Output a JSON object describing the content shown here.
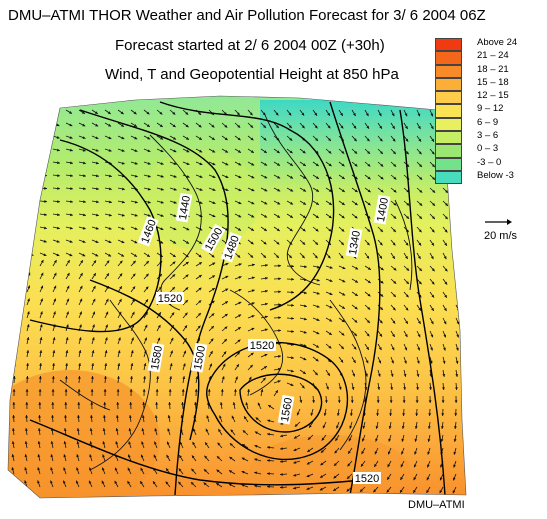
{
  "title_line1": "DMU–ATMI THOR Weather and Air Pollution Forecast for  3/ 6 2004  06Z",
  "title_line2": "Forecast started at  2/ 6 2004  00Z (+30h)",
  "title_line3": "Wind, T and Geopotential Height at 850 hPa",
  "legend": [
    {
      "label": "Above   24",
      "color": "#f03a10"
    },
    {
      "label": "21 – 24",
      "color": "#f4661a"
    },
    {
      "label": "18 – 21",
      "color": "#f88a28"
    },
    {
      "label": "15 – 18",
      "color": "#fbae38"
    },
    {
      "label": "12 – 15",
      "color": "#fdcc4a"
    },
    {
      "label": "9 – 12",
      "color": "#fbe454"
    },
    {
      "label": "6 – 9",
      "color": "#e8f060"
    },
    {
      "label": "3 – 6",
      "color": "#c6ee64"
    },
    {
      "label": "0 – 3",
      "color": "#9ae872"
    },
    {
      "label": "-3 – 0",
      "color": "#74e28a"
    },
    {
      "label": "Below    -3",
      "color": "#46dcbc"
    }
  ],
  "wind_scale_label": "20 m/s",
  "credit": "DMU–ATMI",
  "contour_labels": [
    "1440",
    "1460",
    "1480",
    "1500",
    "1520",
    "1520",
    "1560",
    "1500",
    "1580",
    "1520",
    "1340",
    "1400"
  ]
}
